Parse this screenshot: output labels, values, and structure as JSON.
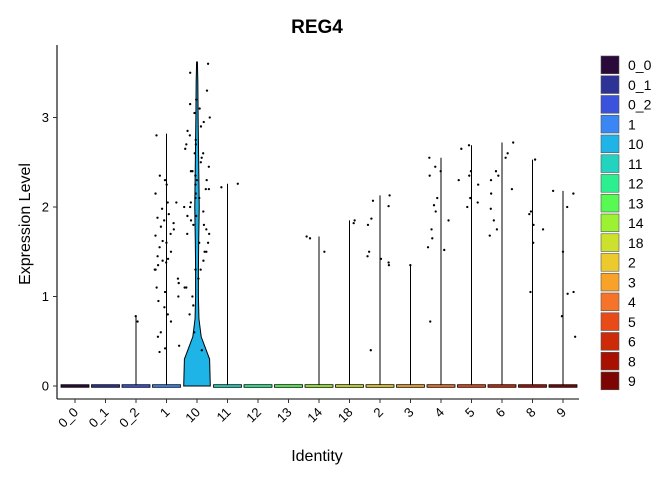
{
  "chart_data": {
    "type": "violin",
    "title": "REG4",
    "xlabel": "Identity",
    "ylabel": "Expression Level",
    "ylim": [
      -0.15,
      3.8
    ],
    "yticks": [
      0,
      1,
      2,
      3
    ],
    "grid": false,
    "legend_position": "right",
    "categories": [
      "0_0",
      "0_1",
      "0_2",
      "1",
      "10",
      "11",
      "12",
      "13",
      "14",
      "18",
      "2",
      "3",
      "4",
      "5",
      "6",
      "8",
      "9"
    ],
    "colors": [
      "#2a0a3a",
      "#2d3296",
      "#3a52dc",
      "#3a86f4",
      "#1fb4e8",
      "#22d4c0",
      "#2cf090",
      "#56fa52",
      "#9cf232",
      "#cce02e",
      "#ecca2e",
      "#f8a22a",
      "#f6742a",
      "#e84a18",
      "#cc2a08",
      "#a81002",
      "#7c0402"
    ],
    "max_values": [
      0,
      0,
      0.78,
      2.82,
      3.62,
      2.26,
      0,
      0,
      1.67,
      1.85,
      2.13,
      1.35,
      2.55,
      2.69,
      2.72,
      2.53,
      2.18
    ],
    "points": [
      [],
      [],
      [
        0.78,
        0.72
      ],
      [
        2.8,
        2.35,
        2.3,
        2.25,
        2.15,
        2.05,
        1.92,
        1.85,
        1.78,
        1.75,
        1.7,
        1.68,
        1.6,
        1.55,
        1.5,
        1.45,
        1.42,
        1.38,
        1.35,
        1.3,
        1.2,
        1.15,
        1.1,
        1.05,
        1.0,
        0.95,
        0.88,
        0.8,
        0.72,
        0.6,
        0.55,
        0.45,
        0.42,
        0.38,
        2.05,
        1.98,
        1.88,
        1.82,
        1.62,
        1.4,
        1.3
      ],
      [
        3.6,
        3.5,
        3.3,
        3.2,
        3.15,
        3.1,
        3.05,
        2.95,
        2.9,
        2.85,
        2.8,
        2.75,
        2.7,
        2.65,
        2.6,
        2.55,
        2.5,
        2.45,
        2.4,
        2.35,
        2.3,
        2.25,
        2.2,
        2.15,
        2.1,
        2.05,
        2.0,
        1.95,
        1.9,
        1.85,
        1.8,
        1.75,
        1.7,
        1.6,
        1.5,
        1.4,
        1.3,
        1.2,
        1.1,
        1.0,
        0.9,
        0.8,
        0.6,
        0.4,
        2.6,
        2.4,
        2.2,
        2.0,
        1.8,
        1.6,
        1.3,
        1.1,
        3.0,
        2.7,
        2.3,
        2.1,
        1.9,
        1.7,
        1.5
      ],
      [
        2.26,
        2.22
      ],
      [],
      [],
      [
        1.67,
        1.65,
        1.5
      ],
      [
        1.85,
        1.82
      ],
      [
        2.13,
        2.07,
        2.01,
        1.87,
        1.8,
        1.5,
        1.45,
        1.42,
        1.38,
        1.35,
        0.4
      ],
      [
        1.35
      ],
      [
        2.55,
        2.45,
        2.4,
        2.35,
        2.1,
        2.02,
        1.95,
        1.85,
        1.75,
        1.65,
        1.55,
        1.52,
        0.72
      ],
      [
        2.69,
        2.65,
        2.4,
        2.35,
        2.3,
        2.25,
        2.1,
        2.05,
        2.0
      ],
      [
        2.72,
        2.6,
        2.55,
        2.4,
        2.35,
        2.3,
        2.2,
        2.15,
        1.98,
        1.85,
        1.75,
        1.68
      ],
      [
        2.53,
        1.95,
        1.92,
        1.8,
        1.75,
        1.6,
        1.05
      ],
      [
        2.18,
        2.15,
        2.0,
        1.5,
        1.05,
        1.03,
        0.78,
        0.55
      ]
    ],
    "density": [
      [
        0.0,
        0.95
      ],
      [
        0.3,
        0.9
      ],
      [
        0.55,
        0.3
      ],
      [
        0.75,
        0.14
      ],
      [
        1.0,
        0.1
      ],
      [
        1.3,
        0.1
      ],
      [
        1.6,
        0.12
      ],
      [
        2.0,
        0.16
      ],
      [
        2.5,
        0.12
      ],
      [
        3.0,
        0.08
      ],
      [
        3.4,
        0.06
      ],
      [
        3.62,
        0.03
      ]
    ]
  }
}
